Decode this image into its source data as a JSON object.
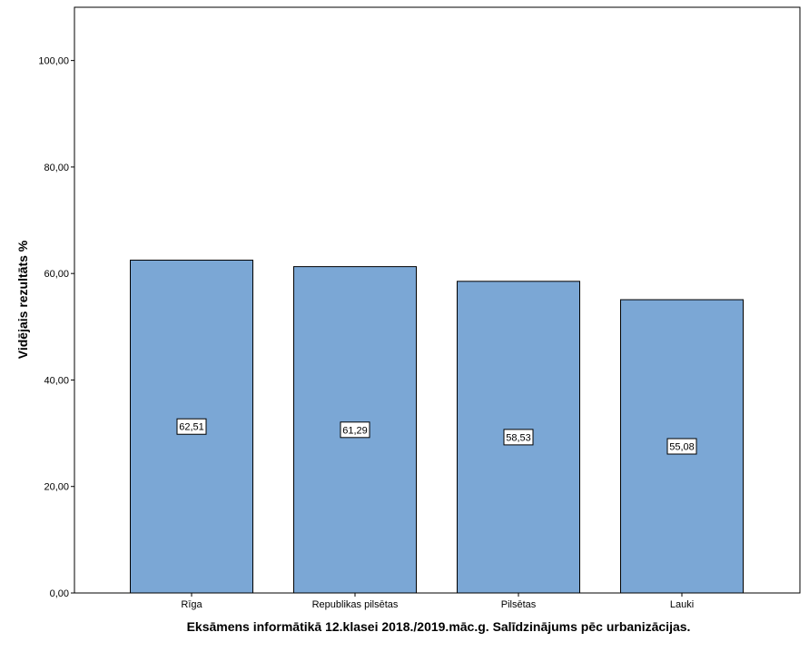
{
  "chart_data": {
    "type": "bar",
    "categories": [
      "Rīga",
      "Republikas pilsētas",
      "Pilsētas",
      "Lauki"
    ],
    "values": [
      62.51,
      61.29,
      58.53,
      55.08
    ],
    "data_labels": [
      "62,51",
      "61,29",
      "58,53",
      "55,08"
    ],
    "title": "",
    "xlabel": "Eksāmens informātikā 12.klasei 2018./2019.māc.g. Salīdzinājums pēc urbanizācijas.",
    "ylabel": "Vidējais rezultāts %",
    "ylim": [
      0,
      110
    ],
    "yticks": [
      0,
      20,
      40,
      60,
      80,
      100
    ],
    "ytick_labels": [
      "0,00",
      "20,00",
      "40,00",
      "60,00",
      "80,00",
      "100,00"
    ],
    "grid": false,
    "legend": "none",
    "bar_color": "#7ba7d5",
    "bar_edge_color": "#000000"
  }
}
